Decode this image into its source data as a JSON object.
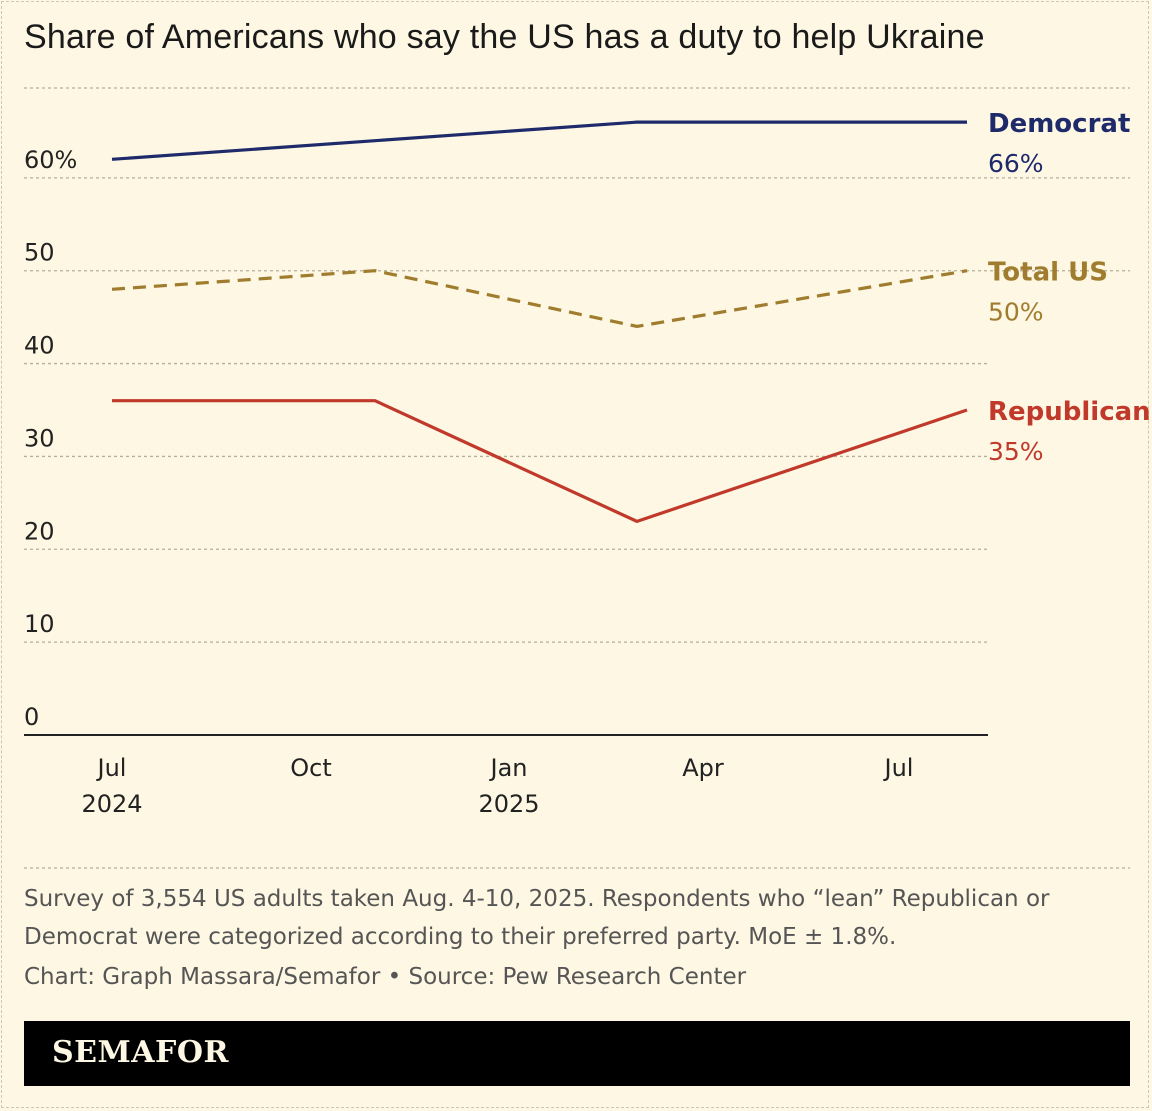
{
  "title": "Share of Americans who say the US has a duty to help Ukraine",
  "chart_data": {
    "type": "line",
    "title": "Share of Americans who say the US has a duty to help Ukraine",
    "xlabel": "",
    "ylabel": "",
    "ylim": [
      0,
      70
    ],
    "y_ticks": [
      {
        "value": 0,
        "label": "0"
      },
      {
        "value": 10,
        "label": "10"
      },
      {
        "value": 20,
        "label": "20"
      },
      {
        "value": 30,
        "label": "30"
      },
      {
        "value": 40,
        "label": "40"
      },
      {
        "value": 50,
        "label": "50"
      },
      {
        "value": 60,
        "label": "60%"
      }
    ],
    "x_ticks": [
      {
        "label": "Jul",
        "sub": "2024"
      },
      {
        "label": "Oct",
        "sub": ""
      },
      {
        "label": "Jan",
        "sub": "2025"
      },
      {
        "label": "Apr",
        "sub": ""
      },
      {
        "label": "Jul",
        "sub": ""
      }
    ],
    "x": [
      "Jul 2024",
      "Nov 2024",
      "Mar 2025",
      "Aug 2025"
    ],
    "series": [
      {
        "name": "Democrat",
        "value_label": "66%",
        "color": "#1f2a6b",
        "style": "solid",
        "values": [
          62,
          64,
          66,
          66
        ]
      },
      {
        "name": "Total US",
        "value_label": "50%",
        "color": "#a07d2e",
        "style": "dashed",
        "values": [
          48,
          50,
          44,
          50
        ]
      },
      {
        "name": "Republican",
        "value_label": "35%",
        "color": "#c0392b",
        "style": "solid",
        "values": [
          36,
          36,
          23,
          35
        ]
      }
    ]
  },
  "note": "Survey of 3,554 US adults taken Aug. 4-10, 2025. Respondents who “lean” Republican or Democrat were categorized according to their preferred party. MoE ± 1.8%.",
  "credit": "Chart: Graph Massara/Semafor • Source: Pew Research Center",
  "logo": "SEMAFOR"
}
